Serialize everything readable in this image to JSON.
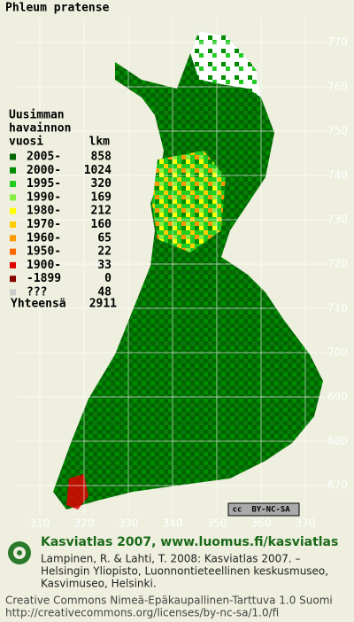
{
  "title": "Phleum pratense",
  "legend": {
    "header": [
      "Uusimman",
      "havainnon",
      "vuosi",
      "lkm"
    ],
    "rows": [
      {
        "label": "2005-",
        "count": 858,
        "color": "#006400"
      },
      {
        "label": "2000-",
        "count": 1024,
        "color": "#008c00"
      },
      {
        "label": "1995-",
        "count": 320,
        "color": "#22cc22"
      },
      {
        "label": "1990-",
        "count": 169,
        "color": "#88ee44"
      },
      {
        "label": "1980-",
        "count": 212,
        "color": "#ffff00"
      },
      {
        "label": "1970-",
        "count": 160,
        "color": "#ffcc00"
      },
      {
        "label": "1960-",
        "count": 65,
        "color": "#ff9900"
      },
      {
        "label": "1950-",
        "count": 22,
        "color": "#ff6600"
      },
      {
        "label": "1900-",
        "count": 33,
        "color": "#dd0000"
      },
      {
        "label": "-1899",
        "count": 0,
        "color": "#880000"
      },
      {
        "label": "???",
        "count": 48,
        "color": "#cccccc"
      }
    ],
    "total_label": "Yhteensä",
    "total": 2911
  },
  "x_labels": [
    310,
    320,
    330,
    340,
    350,
    360,
    370
  ],
  "y_labels": [
    770,
    760,
    750,
    740,
    730,
    720,
    710,
    700,
    690,
    680,
    670
  ],
  "badge": [
    "cc",
    "BY-NC-SA"
  ],
  "footer": {
    "heading": "Kasviatlas 2007, www.luomus.fi/kasviatlas",
    "citation": [
      "Lampinen, R. & Lahti, T. 2008: Kasviatlas 2007. –",
      "Helsingin Yliopisto, Luonnontieteellinen keskusmuseo,",
      "Kasvimuseo, Helsinki."
    ],
    "license": [
      "Creative Commons Nimeä-Epäkaupallinen-Tarttuva 1.0 Suomi",
      "http://creativecommons.org/licenses/by-nc-sa/1.0/fi"
    ]
  }
}
